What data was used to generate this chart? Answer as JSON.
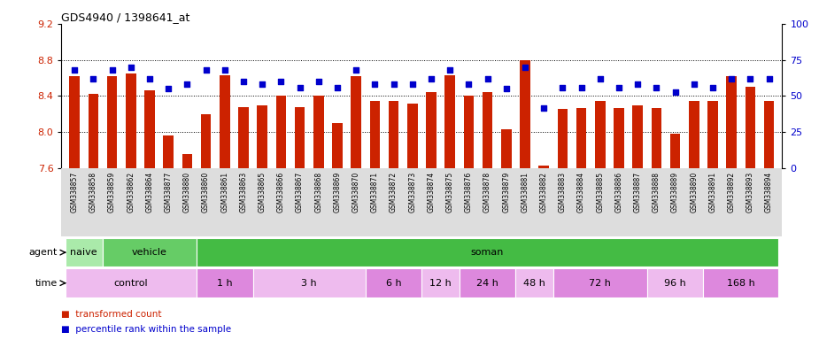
{
  "title": "GDS4940 / 1398641_at",
  "samples": [
    "GSM338857",
    "GSM338858",
    "GSM338859",
    "GSM338862",
    "GSM338864",
    "GSM338877",
    "GSM338880",
    "GSM338860",
    "GSM338861",
    "GSM338863",
    "GSM338865",
    "GSM338866",
    "GSM338867",
    "GSM338868",
    "GSM338869",
    "GSM338870",
    "GSM338871",
    "GSM338872",
    "GSM338873",
    "GSM338874",
    "GSM338875",
    "GSM338876",
    "GSM338878",
    "GSM338879",
    "GSM338881",
    "GSM338882",
    "GSM338883",
    "GSM338884",
    "GSM338885",
    "GSM338886",
    "GSM338887",
    "GSM338888",
    "GSM338889",
    "GSM338890",
    "GSM338891",
    "GSM338892",
    "GSM338893",
    "GSM338894"
  ],
  "bar_values": [
    8.62,
    8.42,
    8.62,
    8.65,
    8.46,
    7.96,
    7.76,
    8.2,
    8.63,
    8.28,
    8.3,
    8.4,
    8.28,
    8.4,
    8.1,
    8.62,
    8.35,
    8.35,
    8.32,
    8.44,
    8.63,
    8.4,
    8.44,
    8.03,
    8.8,
    7.63,
    8.26,
    8.27,
    8.35,
    8.27,
    8.3,
    8.27,
    7.98,
    8.35,
    8.35,
    8.62,
    8.5,
    8.35
  ],
  "dot_values": [
    68,
    62,
    68,
    70,
    62,
    55,
    58,
    68,
    68,
    60,
    58,
    60,
    56,
    60,
    56,
    68,
    58,
    58,
    58,
    62,
    68,
    58,
    62,
    55,
    70,
    42,
    56,
    56,
    62,
    56,
    58,
    56,
    53,
    58,
    56,
    62,
    62,
    62
  ],
  "ylim_left": [
    7.6,
    9.2
  ],
  "ylim_right": [
    0,
    100
  ],
  "yticks_left": [
    7.6,
    8.0,
    8.4,
    8.8,
    9.2
  ],
  "yticks_right": [
    0,
    25,
    50,
    75,
    100
  ],
  "bar_color": "#cc2200",
  "dot_color": "#0000cc",
  "agent_groups": [
    {
      "label": "naive",
      "start": 0,
      "end": 2,
      "color": "#aaeaaa"
    },
    {
      "label": "vehicle",
      "start": 2,
      "end": 7,
      "color": "#66cc66"
    },
    {
      "label": "soman",
      "start": 7,
      "end": 38,
      "color": "#44bb44"
    }
  ],
  "time_groups": [
    {
      "label": "control",
      "start": 0,
      "end": 7,
      "color": "#eebbee"
    },
    {
      "label": "1 h",
      "start": 7,
      "end": 10,
      "color": "#dd88dd"
    },
    {
      "label": "3 h",
      "start": 10,
      "end": 16,
      "color": "#eebbee"
    },
    {
      "label": "6 h",
      "start": 16,
      "end": 19,
      "color": "#dd88dd"
    },
    {
      "label": "12 h",
      "start": 19,
      "end": 21,
      "color": "#eebbee"
    },
    {
      "label": "24 h",
      "start": 21,
      "end": 24,
      "color": "#dd88dd"
    },
    {
      "label": "48 h",
      "start": 24,
      "end": 26,
      "color": "#eebbee"
    },
    {
      "label": "72 h",
      "start": 26,
      "end": 31,
      "color": "#dd88dd"
    },
    {
      "label": "96 h",
      "start": 31,
      "end": 34,
      "color": "#eebbee"
    },
    {
      "label": "168 h",
      "start": 34,
      "end": 38,
      "color": "#dd88dd"
    }
  ]
}
